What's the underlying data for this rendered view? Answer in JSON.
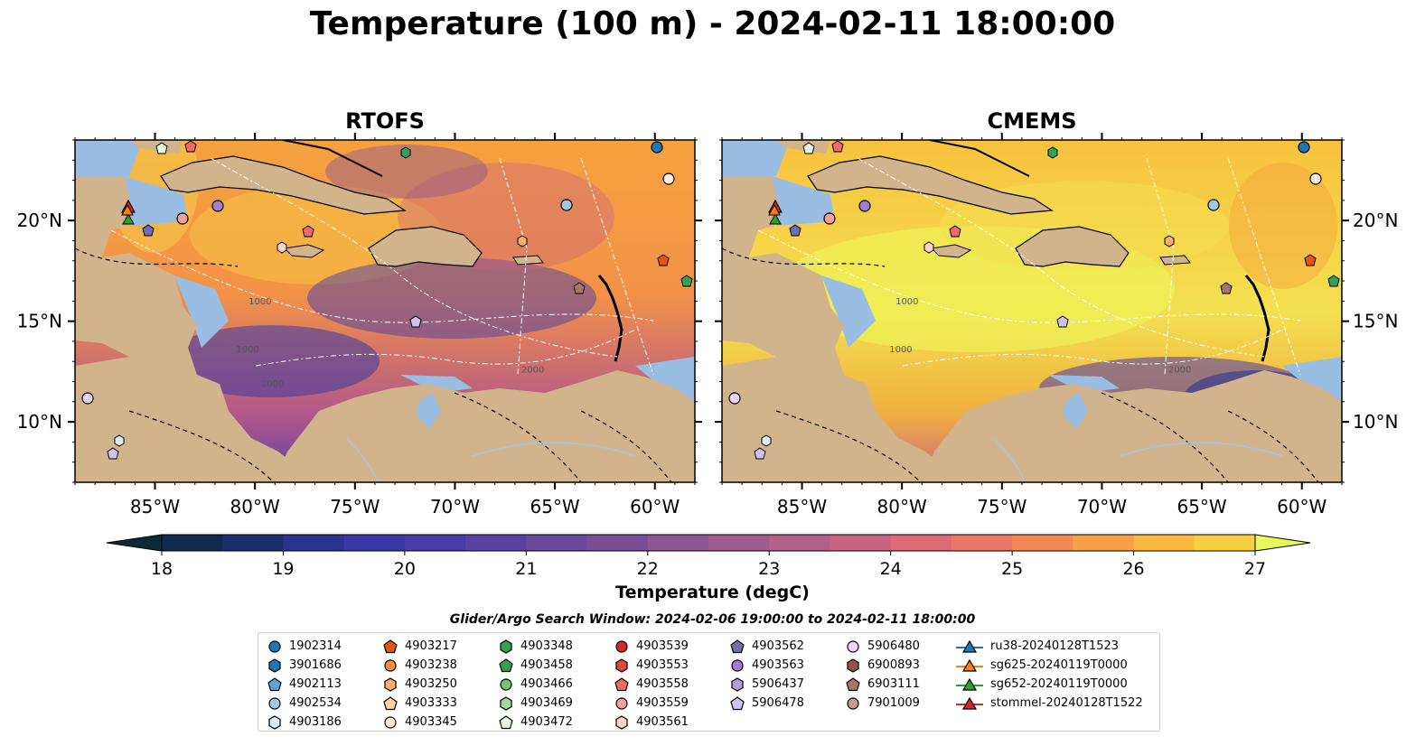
{
  "title": "Temperature (100 m) - 2024-02-11 18:00:00",
  "chart_data": [
    {
      "type": "heatmap",
      "title": "RTOFS",
      "x_ticks": [
        "85°W",
        "80°W",
        "75°W",
        "70°W",
        "65°W",
        "60°W"
      ],
      "y_ticks_left": [
        "20°N",
        "15°N",
        "10°N"
      ],
      "xlim": [
        -89,
        -58
      ],
      "ylim": [
        7,
        24
      ],
      "contour_labels": [
        "1000",
        "1000",
        "1000",
        "2000"
      ]
    },
    {
      "type": "heatmap",
      "title": "CMEMS",
      "x_ticks": [
        "85°W",
        "80°W",
        "75°W",
        "70°W",
        "65°W",
        "60°W"
      ],
      "y_ticks_right": [
        "20°N",
        "15°N",
        "10°N"
      ],
      "xlim": [
        -89,
        -58
      ],
      "ylim": [
        7,
        24
      ],
      "contour_labels": [
        "1000",
        "1000",
        "2000"
      ]
    }
  ],
  "colorbar": {
    "label": "Temperature (degC)",
    "min": 18,
    "max": 27,
    "step": 0.5,
    "ticks": [
      "18",
      "19",
      "20",
      "21",
      "22",
      "23",
      "24",
      "25",
      "26",
      "27"
    ],
    "colors": [
      "#0b2a37",
      "#132a4f",
      "#1d2e6e",
      "#2b3390",
      "#3a38a6",
      "#4a3ca8",
      "#5a42a2",
      "#6a489c",
      "#7a4e96",
      "#8d5592",
      "#a05b8e",
      "#b56088",
      "#c96581",
      "#dc6b76",
      "#ec7665",
      "#f48a52",
      "#f8a044",
      "#fab83c",
      "#f9d040",
      "#f1e84c",
      "#e8fa5a"
    ]
  },
  "search_window": "Glider/Argo Search Window: 2024-02-06 19:00:00 to 2024-02-11 18:00:00",
  "legend": {
    "columns": [
      [
        {
          "label": "1902314",
          "marker": "circle",
          "color": "#1f77b4"
        },
        {
          "label": "3901686",
          "marker": "hexagon",
          "color": "#1f77b4"
        },
        {
          "label": "4902113",
          "marker": "pentagon",
          "color": "#5fa2d6"
        },
        {
          "label": "4902534",
          "marker": "circle",
          "color": "#9ecae1"
        },
        {
          "label": "4903186",
          "marker": "hexagon",
          "color": "#deebf7"
        }
      ],
      [
        {
          "label": "4903217",
          "marker": "pentagon",
          "color": "#e6550d"
        },
        {
          "label": "4903238",
          "marker": "circle",
          "color": "#fd8d3c"
        },
        {
          "label": "4903250",
          "marker": "hexagon",
          "color": "#fdae6b"
        },
        {
          "label": "4903333",
          "marker": "pentagon",
          "color": "#fdd0a2"
        },
        {
          "label": "4903345",
          "marker": "circle",
          "color": "#feecd8"
        }
      ],
      [
        {
          "label": "4903348",
          "marker": "hexagon",
          "color": "#31a354"
        },
        {
          "label": "4903458",
          "marker": "pentagon",
          "color": "#31a354"
        },
        {
          "label": "4903466",
          "marker": "circle",
          "color": "#74c476"
        },
        {
          "label": "4903469",
          "marker": "hexagon",
          "color": "#a1d99b"
        },
        {
          "label": "4903472",
          "marker": "pentagon",
          "color": "#e5f5e0"
        }
      ],
      [
        {
          "label": "4903539",
          "marker": "circle",
          "color": "#d62728"
        },
        {
          "label": "4903553",
          "marker": "hexagon",
          "color": "#e04848"
        },
        {
          "label": "4903558",
          "marker": "pentagon",
          "color": "#f06a6a"
        },
        {
          "label": "4903559",
          "marker": "circle",
          "color": "#f4a0a0"
        },
        {
          "label": "4903561",
          "marker": "hexagon",
          "color": "#fad0d0"
        }
      ],
      [
        {
          "label": "4903562",
          "marker": "pentagon",
          "color": "#756bb1"
        },
        {
          "label": "4903563",
          "marker": "circle",
          "color": "#9e7fd0"
        },
        {
          "label": "5906437",
          "marker": "hexagon",
          "color": "#b39ddb"
        },
        {
          "label": "5906478",
          "marker": "pentagon",
          "color": "#cfc2ee"
        }
      ],
      [
        {
          "label": "5906480",
          "marker": "circle",
          "color": "#ecd5f5"
        },
        {
          "label": "6900893",
          "marker": "hexagon",
          "color": "#8c564b"
        },
        {
          "label": "6903111",
          "marker": "pentagon",
          "color": "#a87568"
        },
        {
          "label": "7901009",
          "marker": "circle",
          "color": "#c49c94"
        }
      ],
      [
        {
          "label": "ru38-20240128T1523",
          "marker": "triangle",
          "color": "#1f77b4"
        },
        {
          "label": "sg625-20240119T0000",
          "marker": "triangle",
          "color": "#ff7f0e"
        },
        {
          "label": "sg652-20240119T0000",
          "marker": "triangle",
          "color": "#2ca02c"
        },
        {
          "label": "stommel-20240128T1522",
          "marker": "triangle",
          "color": "#d62728"
        }
      ]
    ]
  }
}
